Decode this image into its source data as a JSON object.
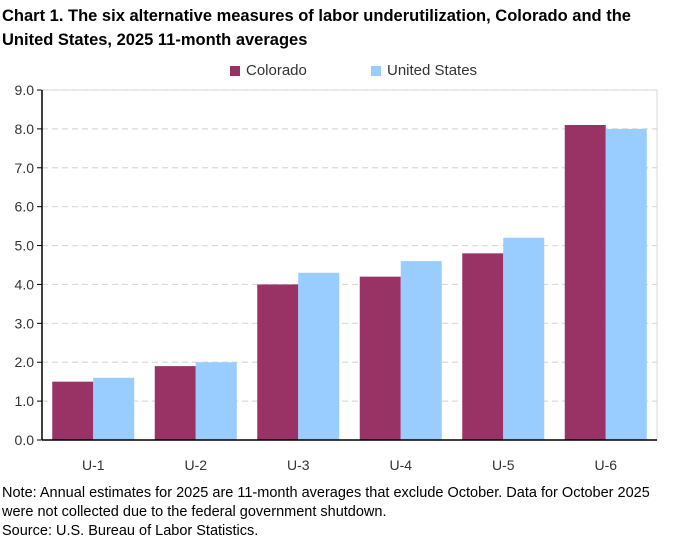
{
  "chart_data": {
    "type": "bar",
    "title": "Chart 1. The six alternative measures of labor underutilization, Colorado and the United States, 2025 11-month averages",
    "categories": [
      "U-1",
      "U-2",
      "U-3",
      "U-4",
      "U-5",
      "U-6"
    ],
    "series": [
      {
        "name": "Colorado",
        "color": "#993366",
        "values": [
          1.5,
          1.9,
          4.0,
          4.2,
          4.8,
          8.1
        ]
      },
      {
        "name": "United States",
        "color": "#99CCFF",
        "values": [
          1.6,
          2.0,
          4.3,
          4.6,
          5.2,
          8.0
        ]
      }
    ],
    "ylim": [
      0,
      9
    ],
    "yticks": [
      "0.0",
      "1.0",
      "2.0",
      "3.0",
      "4.0",
      "5.0",
      "6.0",
      "7.0",
      "8.0",
      "9.0"
    ],
    "grid": true,
    "legend_position": "top"
  },
  "notes": {
    "note": "Note: Annual estimates for 2025 are 11-month averages that exclude October. Data for October 2025 were not collected due to the federal government shutdown.",
    "source": "Source: U.S. Bureau of Labor Statistics."
  }
}
